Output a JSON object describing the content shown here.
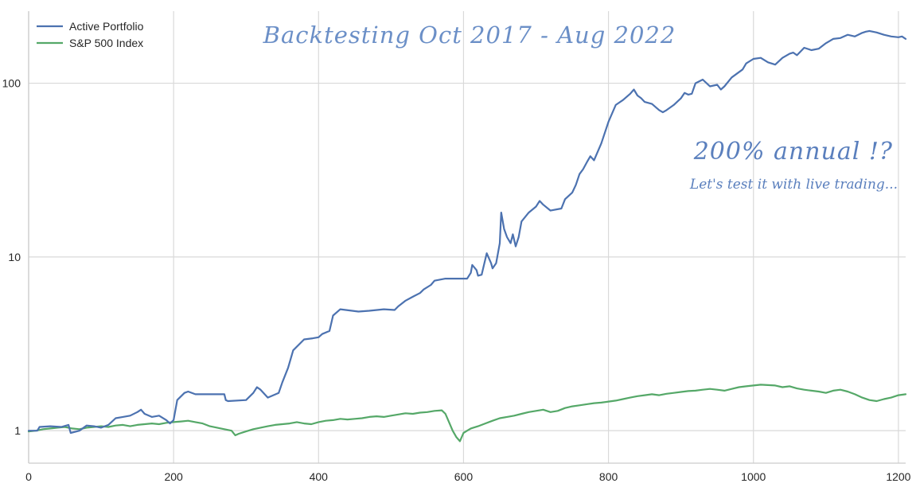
{
  "chart_data": {
    "type": "line",
    "title": "Backtesting Oct 2017 - Aug 2022",
    "xlabel": "",
    "ylabel": "",
    "yscale": "log",
    "xlim": [
      0,
      1210
    ],
    "ylim": [
      0.65,
      260
    ],
    "xticks": [
      "0",
      "200",
      "400",
      "600",
      "800",
      "1000",
      "1200"
    ],
    "yticks": [
      "1",
      "10",
      "100"
    ],
    "grid": true,
    "legend_position": "top-left",
    "annotations": [
      "200% annual !?",
      "Let's test it with live trading..."
    ],
    "series": [
      {
        "name": "Active Portfolio",
        "color": "#4c72b0",
        "x": [
          0,
          12,
          15,
          30,
          45,
          55,
          58,
          70,
          80,
          90,
          100,
          110,
          120,
          130,
          140,
          150,
          155,
          160,
          170,
          180,
          190,
          195,
          200,
          205,
          215,
          220,
          230,
          245,
          260,
          270,
          272,
          275,
          300,
          310,
          315,
          320,
          330,
          345,
          350,
          358,
          365,
          380,
          392,
          400,
          405,
          415,
          420,
          430,
          455,
          470,
          490,
          505,
          510,
          520,
          530,
          540,
          545,
          555,
          560,
          575,
          580,
          590,
          605,
          610,
          612,
          618,
          620,
          625,
          632,
          638,
          640,
          645,
          650,
          652,
          656,
          660,
          665,
          668,
          672,
          676,
          680,
          690,
          700,
          705,
          710,
          720,
          735,
          740,
          750,
          755,
          760,
          765,
          770,
          775,
          780,
          790,
          800,
          810,
          820,
          830,
          835,
          840,
          845,
          850,
          860,
          870,
          875,
          880,
          890,
          900,
          905,
          910,
          915,
          920,
          930,
          940,
          950,
          955,
          960,
          970,
          985,
          990,
          1000,
          1010,
          1020,
          1030,
          1040,
          1050,
          1055,
          1060,
          1070,
          1080,
          1090,
          1100,
          1110,
          1120,
          1130,
          1140,
          1150,
          1155,
          1160,
          1170,
          1180,
          1190,
          1200,
          1205,
          1210
        ],
        "y": [
          1.0,
          1.0,
          1.05,
          1.06,
          1.05,
          1.08,
          0.97,
          1.0,
          1.07,
          1.06,
          1.04,
          1.08,
          1.18,
          1.2,
          1.22,
          1.28,
          1.32,
          1.25,
          1.2,
          1.22,
          1.15,
          1.1,
          1.15,
          1.5,
          1.65,
          1.68,
          1.62,
          1.62,
          1.62,
          1.62,
          1.5,
          1.48,
          1.5,
          1.65,
          1.78,
          1.72,
          1.55,
          1.65,
          1.9,
          2.3,
          2.9,
          3.35,
          3.4,
          3.45,
          3.6,
          3.75,
          4.6,
          5.0,
          4.85,
          4.9,
          5.0,
          4.95,
          5.2,
          5.6,
          5.9,
          6.2,
          6.5,
          6.9,
          7.3,
          7.5,
          7.5,
          7.5,
          7.5,
          8.1,
          9.0,
          8.4,
          7.8,
          7.9,
          10.5,
          9.2,
          8.6,
          9.2,
          12.0,
          18.0,
          14.5,
          13.0,
          12.0,
          13.5,
          11.5,
          13.0,
          16.0,
          18.0,
          19.5,
          21.0,
          20.0,
          18.5,
          19.0,
          21.5,
          23.5,
          26.0,
          30.0,
          32.0,
          35.0,
          38.0,
          36.0,
          45.0,
          60.0,
          75.0,
          80.0,
          87.0,
          92.0,
          85.0,
          82.0,
          78.0,
          76.0,
          70.0,
          68.0,
          70.0,
          75.0,
          82.0,
          88.0,
          86.0,
          87.0,
          100.0,
          105.0,
          96.0,
          98.0,
          92.0,
          96.0,
          108.0,
          120.0,
          130.0,
          138.0,
          140.0,
          132.0,
          128.0,
          140.0,
          148.0,
          150.0,
          145.0,
          160.0,
          155.0,
          158.0,
          170.0,
          180.0,
          182.0,
          190.0,
          186.0,
          195.0,
          198.0,
          200.0,
          196.0,
          190.0,
          186.0,
          184.0,
          186.0,
          180.0
        ]
      },
      {
        "name": "S&P 500 Index",
        "color": "#55a868",
        "x": [
          0,
          10,
          20,
          30,
          40,
          50,
          60,
          70,
          80,
          90,
          100,
          110,
          120,
          130,
          140,
          150,
          160,
          170,
          180,
          190,
          200,
          210,
          220,
          230,
          240,
          250,
          260,
          270,
          280,
          285,
          290,
          300,
          310,
          320,
          330,
          340,
          350,
          360,
          370,
          380,
          390,
          400,
          410,
          420,
          430,
          440,
          450,
          460,
          470,
          480,
          490,
          500,
          510,
          520,
          530,
          540,
          550,
          560,
          570,
          575,
          580,
          585,
          590,
          595,
          600,
          605,
          610,
          620,
          630,
          640,
          650,
          660,
          670,
          680,
          690,
          700,
          710,
          720,
          730,
          740,
          750,
          760,
          770,
          780,
          790,
          800,
          810,
          820,
          830,
          840,
          850,
          860,
          870,
          880,
          890,
          900,
          910,
          920,
          930,
          940,
          950,
          960,
          970,
          980,
          990,
          1000,
          1010,
          1020,
          1030,
          1040,
          1050,
          1060,
          1070,
          1080,
          1090,
          1100,
          1110,
          1120,
          1130,
          1140,
          1150,
          1160,
          1170,
          1180,
          1190,
          1200,
          1210
        ],
        "y": [
          0.99,
          1.0,
          1.02,
          1.03,
          1.04,
          1.05,
          1.03,
          1.02,
          1.04,
          1.05,
          1.06,
          1.05,
          1.07,
          1.08,
          1.06,
          1.08,
          1.09,
          1.1,
          1.09,
          1.11,
          1.12,
          1.13,
          1.14,
          1.12,
          1.1,
          1.06,
          1.04,
          1.02,
          1.0,
          0.94,
          0.96,
          0.99,
          1.02,
          1.04,
          1.06,
          1.08,
          1.09,
          1.1,
          1.12,
          1.1,
          1.09,
          1.12,
          1.14,
          1.15,
          1.17,
          1.16,
          1.17,
          1.18,
          1.2,
          1.21,
          1.2,
          1.22,
          1.24,
          1.26,
          1.25,
          1.27,
          1.28,
          1.3,
          1.31,
          1.25,
          1.12,
          1.0,
          0.92,
          0.87,
          0.97,
          1.0,
          1.03,
          1.06,
          1.1,
          1.14,
          1.18,
          1.2,
          1.22,
          1.25,
          1.28,
          1.3,
          1.32,
          1.28,
          1.3,
          1.35,
          1.38,
          1.4,
          1.42,
          1.44,
          1.45,
          1.47,
          1.49,
          1.52,
          1.55,
          1.58,
          1.6,
          1.62,
          1.6,
          1.63,
          1.65,
          1.67,
          1.69,
          1.7,
          1.72,
          1.74,
          1.72,
          1.7,
          1.74,
          1.78,
          1.8,
          1.82,
          1.84,
          1.83,
          1.82,
          1.78,
          1.8,
          1.75,
          1.72,
          1.7,
          1.68,
          1.65,
          1.7,
          1.72,
          1.68,
          1.62,
          1.55,
          1.5,
          1.48,
          1.52,
          1.55,
          1.6,
          1.62
        ]
      }
    ]
  }
}
